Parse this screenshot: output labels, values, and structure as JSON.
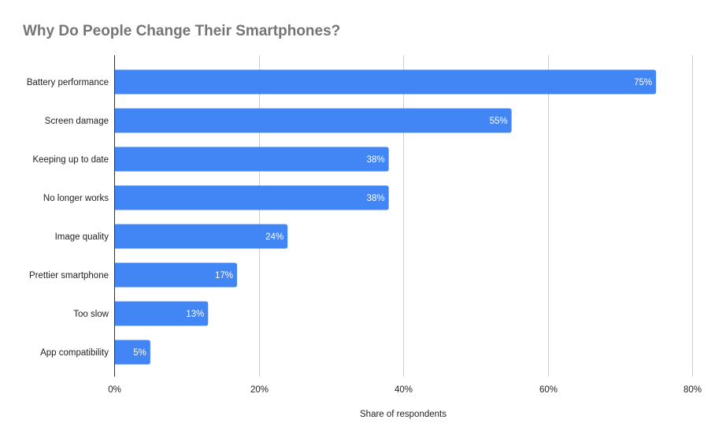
{
  "chart_data": {
    "type": "bar",
    "orientation": "horizontal",
    "title": "Why Do People Change Their Smartphones?",
    "xlabel": "Share of respondents",
    "ylabel": "",
    "categories": [
      "Battery performance",
      "Screen damage",
      "Keeping up to date",
      "No longer works",
      "Image quality",
      "Prettier smartphone",
      "Too slow",
      "App compatibility"
    ],
    "values": [
      75,
      55,
      38,
      38,
      24,
      17,
      13,
      5
    ],
    "value_labels": [
      "75%",
      "55%",
      "38%",
      "38%",
      "24%",
      "17%",
      "13%",
      "5%"
    ],
    "xlim": [
      0,
      80
    ],
    "xticks": [
      0,
      20,
      40,
      60,
      80
    ],
    "xtick_labels": [
      "0%",
      "20%",
      "40%",
      "60%",
      "80%"
    ],
    "grid": true,
    "legend": "none",
    "bar_color": "#4285f4"
  }
}
